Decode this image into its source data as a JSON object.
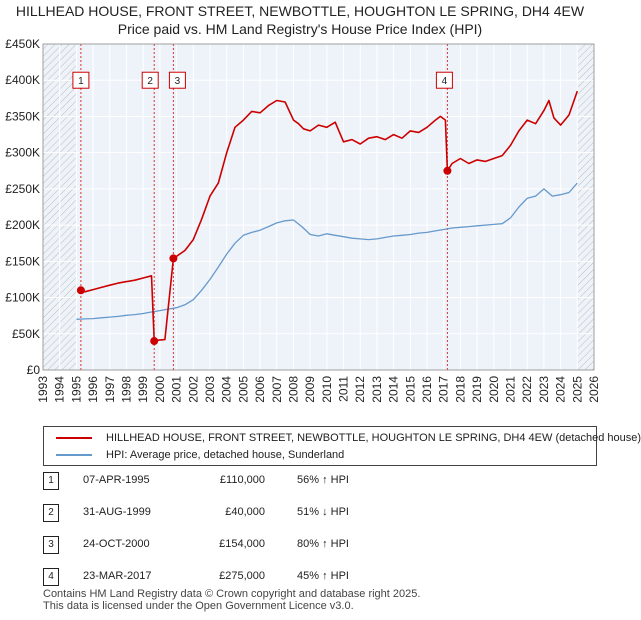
{
  "title": {
    "line1": "HILLHEAD HOUSE, FRONT STREET, NEWBOTTLE, HOUGHTON LE SPRING, DH4 4EW",
    "line2": "Price paid vs. HM Land Registry's House Price Index (HPI)"
  },
  "colors": {
    "property": "#cc0000",
    "hpi": "#6699cc",
    "marker_line": "#dd3333"
  },
  "chart_data": {
    "type": "line",
    "xlim": [
      1993,
      2026
    ],
    "ylim": [
      0,
      450000
    ],
    "y_ticks": [
      0,
      50000,
      100000,
      150000,
      200000,
      250000,
      300000,
      350000,
      400000,
      450000
    ],
    "y_tick_labels": [
      "£0",
      "£50K",
      "£100K",
      "£150K",
      "£200K",
      "£250K",
      "£300K",
      "£350K",
      "£400K",
      "£450K"
    ],
    "x_ticks": [
      1993,
      1994,
      1995,
      1996,
      1997,
      1998,
      1999,
      2000,
      2001,
      2002,
      2003,
      2004,
      2005,
      2006,
      2007,
      2008,
      2009,
      2010,
      2011,
      2012,
      2013,
      2014,
      2015,
      2016,
      2017,
      2018,
      2019,
      2020,
      2021,
      2022,
      2023,
      2024,
      2025,
      2026
    ],
    "hatch_before": 1995.0,
    "hatch_after": 2025.0,
    "series": [
      {
        "name": "HILLHEAD HOUSE, FRONT STREET, NEWBOTTLE, HOUGHTON LE SPRING, DH4 4EW (detached house)",
        "color": "#cc0000",
        "x": [
          1995.27,
          1995.5,
          1996,
          1996.5,
          1997,
          1997.5,
          1998,
          1998.5,
          1999,
          1999.5,
          1999.66,
          1999.8,
          2000.3,
          2000.81,
          2001,
          2001.5,
          2002,
          2002.5,
          2003,
          2003.5,
          2004,
          2004.5,
          2005,
          2005.5,
          2006,
          2006.5,
          2007,
          2007.5,
          2008,
          2008.3,
          2008.6,
          2009,
          2009.5,
          2010,
          2010.5,
          2011,
          2011.5,
          2012,
          2012.5,
          2013,
          2013.5,
          2014,
          2014.5,
          2015,
          2015.5,
          2016,
          2016.5,
          2016.8,
          2017.1,
          2017.22,
          2017.5,
          2018,
          2018.5,
          2019,
          2019.5,
          2020,
          2020.5,
          2021,
          2021.5,
          2022,
          2022.5,
          2023,
          2023.3,
          2023.6,
          2024,
          2024.5,
          2025
        ],
        "values": [
          110000,
          108000,
          111000,
          114000,
          117000,
          120000,
          122000,
          124000,
          127000,
          130000,
          40000,
          41000,
          42000,
          154000,
          157000,
          165000,
          180000,
          208000,
          240000,
          258000,
          300000,
          335000,
          345000,
          357000,
          355000,
          365000,
          372000,
          370000,
          345000,
          340000,
          333000,
          330000,
          338000,
          335000,
          342000,
          315000,
          318000,
          312000,
          320000,
          322000,
          318000,
          325000,
          320000,
          330000,
          328000,
          335000,
          345000,
          350000,
          345000,
          275000,
          285000,
          292000,
          285000,
          290000,
          288000,
          292000,
          296000,
          310000,
          330000,
          345000,
          340000,
          358000,
          372000,
          348000,
          338000,
          352000,
          385000
        ]
      },
      {
        "name": "HPI: Average price, detached house, Sunderland",
        "color": "#6699cc",
        "x": [
          1995,
          1995.5,
          1996,
          1996.5,
          1997,
          1997.5,
          1998,
          1998.5,
          1999,
          1999.5,
          2000,
          2000.5,
          2001,
          2001.5,
          2002,
          2002.5,
          2003,
          2003.5,
          2004,
          2004.5,
          2005,
          2005.5,
          2006,
          2006.5,
          2007,
          2007.5,
          2008,
          2008.5,
          2009,
          2009.5,
          2010,
          2010.5,
          2011,
          2011.5,
          2012,
          2012.5,
          2013,
          2013.5,
          2014,
          2014.5,
          2015,
          2015.5,
          2016,
          2016.5,
          2017,
          2017.5,
          2018,
          2018.5,
          2019,
          2019.5,
          2020,
          2020.5,
          2021,
          2021.5,
          2022,
          2022.5,
          2023,
          2023.5,
          2024,
          2024.5,
          2025
        ],
        "values": [
          70000,
          70500,
          71000,
          72000,
          73000,
          74000,
          75500,
          76500,
          78000,
          80000,
          82000,
          84000,
          86000,
          90000,
          97000,
          110000,
          125000,
          142000,
          160000,
          175000,
          186000,
          190000,
          193000,
          198000,
          203000,
          206000,
          207000,
          198000,
          187000,
          185000,
          188000,
          186000,
          184000,
          182000,
          181000,
          180000,
          181000,
          183000,
          185000,
          186000,
          187000,
          189000,
          190000,
          192000,
          194000,
          196000,
          197000,
          198000,
          199000,
          200000,
          201000,
          202000,
          210000,
          225000,
          237000,
          240000,
          250000,
          240000,
          242000,
          245000,
          258000
        ]
      }
    ],
    "sales": [
      {
        "label": "1",
        "x": 1995.27,
        "value": 110000
      },
      {
        "label": "2",
        "x": 1999.66,
        "value": 40000
      },
      {
        "label": "3",
        "x": 2000.81,
        "value": 154000
      },
      {
        "label": "4",
        "x": 2017.22,
        "value": 275000
      }
    ]
  },
  "legend": {
    "property_label": "HILLHEAD HOUSE, FRONT STREET, NEWBOTTLE, HOUGHTON LE SPRING, DH4 4EW (detached house)",
    "hpi_label": "HPI: Average price, detached house, Sunderland"
  },
  "transactions": [
    {
      "num": "1",
      "date": "07-APR-1995",
      "price": "£110,000",
      "hpi": "56% ↑ HPI"
    },
    {
      "num": "2",
      "date": "31-AUG-1999",
      "price": "£40,000",
      "hpi": "51% ↓ HPI"
    },
    {
      "num": "3",
      "date": "24-OCT-2000",
      "price": "£154,000",
      "hpi": "80% ↑ HPI"
    },
    {
      "num": "4",
      "date": "23-MAR-2017",
      "price": "£275,000",
      "hpi": "45% ↑ HPI"
    }
  ],
  "footer": {
    "line1": "Contains HM Land Registry data © Crown copyright and database right 2025.",
    "line2": "This data is licensed under the Open Government Licence v3.0."
  }
}
